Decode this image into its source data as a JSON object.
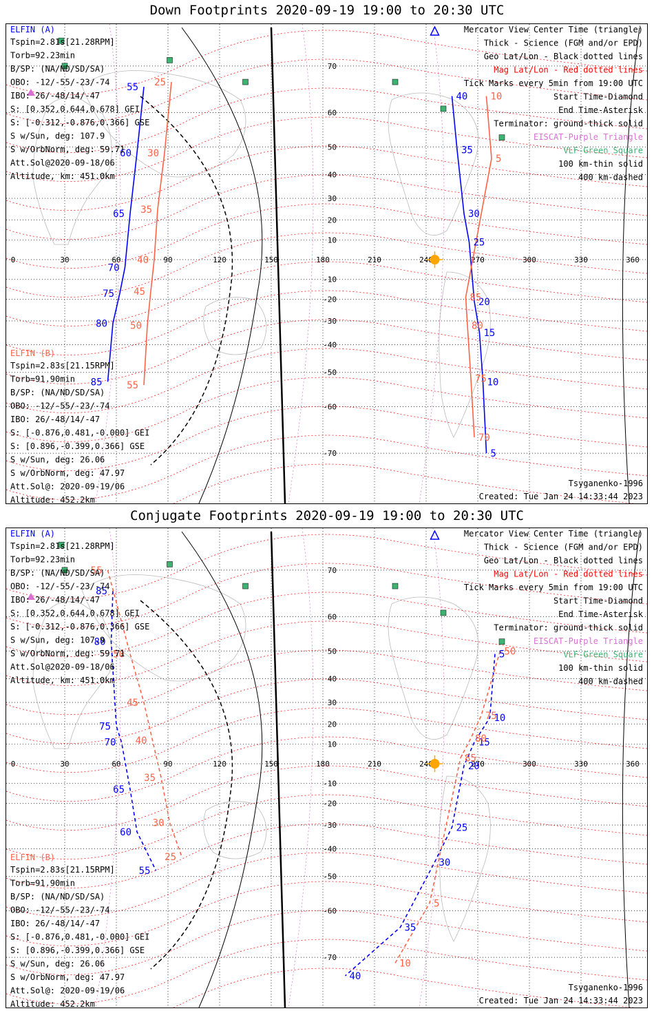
{
  "panels": [
    {
      "title": "Down Footprints 2020-09-19 19:00 to 20:30 UTC",
      "created": "Created: Tue Jan 24 14:33:44 2023",
      "model": "Tsyganenko-1996"
    },
    {
      "title": "Conjugate Footprints 2020-09-19 19:00 to 20:30 UTC",
      "created": "Created: Tue Jan 24 14:33:44 2023",
      "model": "Tsyganenko-1996"
    }
  ],
  "elfin_a": {
    "name": "ELFIN (A)",
    "lines": [
      "Tspin=2.81s[21.28RPM]",
      "Torb=92.23min",
      "B/SP: (NA/ND/SD/SA)",
      "OBO: -12/-55/-23/-74",
      "IBO: 26/-48/14/-47",
      "S: [0.352,0.644,0.678] GEI",
      "S: [-0.312,-0.876,0.366] GSE",
      "S w/Sun, deg: 107.9",
      "S w/OrbNorm, deg: 59.71",
      "Att.Sol@2020-09-18/06",
      "Altitude, km: 451.0km"
    ]
  },
  "elfin_b": {
    "name": "ELFIN (B)",
    "lines": [
      "Tspin=2.83s[21.15RPM]",
      "Torb=91.90min",
      "B/SP: (NA/ND/SD/SA)",
      "OBO: -12/-55/-23/-74",
      "IBO: 26/-48/14/-47",
      "S: [-0.876,0.481,-0.000] GEI",
      "S: [0.896,-0.399,0.366] GSE",
      "S w/Sun, deg: 26.06",
      "S w/OrbNorm, deg: 47.97",
      "Att.Sol@: 2020-09-19/06",
      "Altitude: 452.2km"
    ]
  },
  "legend": [
    {
      "text": "Mercator View Center Time (triangle)",
      "color": "#000000"
    },
    {
      "text": "Thick - Science (FGM and/or EPD)",
      "color": "#000000"
    },
    {
      "text": "Geo Lat/Lon - Black dotted lines",
      "color": "#000000"
    },
    {
      "text": "Mag Lat/Lon - Red dotted lines",
      "color": "#ff0000"
    },
    {
      "text": "Tick Marks every 5min from 19:00 UTC",
      "color": "#000000"
    },
    {
      "text": "Start Time-Diamond",
      "color": "#000000"
    },
    {
      "text": "End Time-Asterisk",
      "color": "#000000"
    },
    {
      "text": "Terminator: ground-thick solid",
      "color": "#000000"
    },
    {
      "text": "EISCAT-Purple Triangle",
      "color": "#da70d6"
    },
    {
      "text": "VLF-Green Square",
      "color": "#3cb371"
    },
    {
      "text": "100 km-thin solid",
      "color": "#000000"
    },
    {
      "text": "400 km-dashed",
      "color": "#000000"
    }
  ],
  "colors": {
    "elfin_a": "#0000ff",
    "elfin_b": "#ff6347",
    "geo_grid": "#000000",
    "mag_grid": "#ff0000",
    "vlf": "#3cb371",
    "eiscat": "#da70d6",
    "sun": "#ffa500"
  },
  "chart_data": [
    {
      "type": "scatter",
      "projection": "mercator",
      "x_ticks": [
        "0",
        "30",
        "60",
        "90",
        "120",
        "150",
        "180",
        "210",
        "240",
        "270",
        "300",
        "330",
        "360"
      ],
      "y_ticks_north": [
        "70",
        "60",
        "50",
        "40",
        "30",
        "20",
        "10"
      ],
      "y_ticks_south": [
        "-10",
        "-20",
        "-30",
        "-40",
        "-50",
        "-60",
        "-70"
      ],
      "xlim": [
        0,
        360
      ],
      "grid": true,
      "series": [
        {
          "name": "ELFIN (A)",
          "track1_tick_labels": [
            {
              "label": "55",
              "lon": 76,
              "lat": 66
            },
            {
              "label": "60",
              "lon": 72,
              "lat": 48
            },
            {
              "label": "65",
              "lon": 68,
              "lat": 23
            },
            {
              "label": "70",
              "lon": 65,
              "lat": -4
            },
            {
              "label": "75",
              "lon": 62,
              "lat": -17
            },
            {
              "label": "80",
              "lon": 58,
              "lat": -31
            },
            {
              "label": "85",
              "lon": 55,
              "lat": -53
            }
          ],
          "track2_tick_labels": [
            {
              "label": "40",
              "lon": 255,
              "lat": 64
            },
            {
              "label": "35",
              "lon": 258,
              "lat": 49
            },
            {
              "label": "30",
              "lon": 262,
              "lat": 23
            },
            {
              "label": "25",
              "lon": 265,
              "lat": 9
            },
            {
              "label": "20",
              "lon": 268,
              "lat": -21
            },
            {
              "label": "15",
              "lon": 271,
              "lat": -35
            },
            {
              "label": "10",
              "lon": 273,
              "lat": -53
            },
            {
              "label": "5",
              "lon": 275,
              "lat": -70
            }
          ]
        },
        {
          "name": "ELFIN (B)",
          "track1_tick_labels": [
            {
              "label": "25",
              "lon": 92,
              "lat": 67
            },
            {
              "label": "30",
              "lon": 88,
              "lat": 48
            },
            {
              "label": "35",
              "lon": 84,
              "lat": 25
            },
            {
              "label": "40",
              "lon": 82,
              "lat": 0
            },
            {
              "label": "45",
              "lon": 80,
              "lat": -16
            },
            {
              "label": "50",
              "lon": 78,
              "lat": -32
            },
            {
              "label": "55",
              "lon": 76,
              "lat": -54
            }
          ],
          "track2_tick_labels": [
            {
              "label": "10",
              "lon": 275,
              "lat": 64
            },
            {
              "label": "5",
              "lon": 278,
              "lat": 46
            },
            {
              "label": "85",
              "lon": 263,
              "lat": -19
            },
            {
              "label": "80",
              "lon": 264,
              "lat": -32
            },
            {
              "label": "75",
              "lon": 266,
              "lat": -52
            },
            {
              "label": "70",
              "lon": 268,
              "lat": -67
            }
          ]
        }
      ]
    },
    {
      "type": "scatter",
      "projection": "mercator",
      "x_ticks": [
        "0",
        "30",
        "60",
        "90",
        "120",
        "150",
        "180",
        "210",
        "240",
        "270",
        "300",
        "330",
        "360"
      ],
      "y_ticks_north": [
        "70",
        "60",
        "50",
        "40",
        "30",
        "20",
        "10"
      ],
      "y_ticks_south": [
        "-10",
        "-20",
        "-30",
        "-40",
        "-50",
        "-60",
        "-70"
      ],
      "xlim": [
        0,
        360
      ],
      "grid": true,
      "series": [
        {
          "name": "ELFIN (A)",
          "track1_tick_labels": [
            {
              "label": "85",
              "lon": 58,
              "lat": 66
            },
            {
              "label": "80",
              "lon": 57,
              "lat": 53
            },
            {
              "label": "75",
              "lon": 60,
              "lat": 19
            },
            {
              "label": "70",
              "lon": 63,
              "lat": 11
            },
            {
              "label": "65",
              "lon": 68,
              "lat": -13
            },
            {
              "label": "60",
              "lon": 72,
              "lat": -33
            },
            {
              "label": "55",
              "lon": 83,
              "lat": -48
            }
          ],
          "track2_tick_labels": [
            {
              "label": "5",
              "lon": 280,
              "lat": 49
            },
            {
              "label": "10",
              "lon": 277,
              "lat": 23
            },
            {
              "label": "15",
              "lon": 268,
              "lat": 11
            },
            {
              "label": "20",
              "lon": 262,
              "lat": -1
            },
            {
              "label": "25",
              "lon": 255,
              "lat": -31
            },
            {
              "label": "30",
              "lon": 245,
              "lat": -45
            },
            {
              "label": "35",
              "lon": 225,
              "lat": -64
            },
            {
              "label": "40",
              "lon": 193,
              "lat": -73
            }
          ]
        },
        {
          "name": "ELFIN (B)",
          "track1_tick_labels": [
            {
              "label": "55",
              "lon": 55,
              "lat": 70
            },
            {
              "label": "50",
              "lon": 68,
              "lat": 49
            },
            {
              "label": "45",
              "lon": 76,
              "lat": 30
            },
            {
              "label": "40",
              "lon": 81,
              "lat": 12
            },
            {
              "label": "35",
              "lon": 86,
              "lat": -7
            },
            {
              "label": "30",
              "lon": 91,
              "lat": -29
            },
            {
              "label": "25",
              "lon": 98,
              "lat": -43
            }
          ],
          "track2_tick_labels": [
            {
              "label": "50",
              "lon": 283,
              "lat": 50
            },
            {
              "label": "75",
              "lon": 272,
              "lat": 24
            },
            {
              "label": "80",
              "lon": 266,
              "lat": 13
            },
            {
              "label": "85",
              "lon": 260,
              "lat": 3
            },
            {
              "label": "5",
              "lon": 242,
              "lat": -58
            },
            {
              "label": "10",
              "lon": 222,
              "lat": -71
            }
          ]
        }
      ]
    }
  ]
}
